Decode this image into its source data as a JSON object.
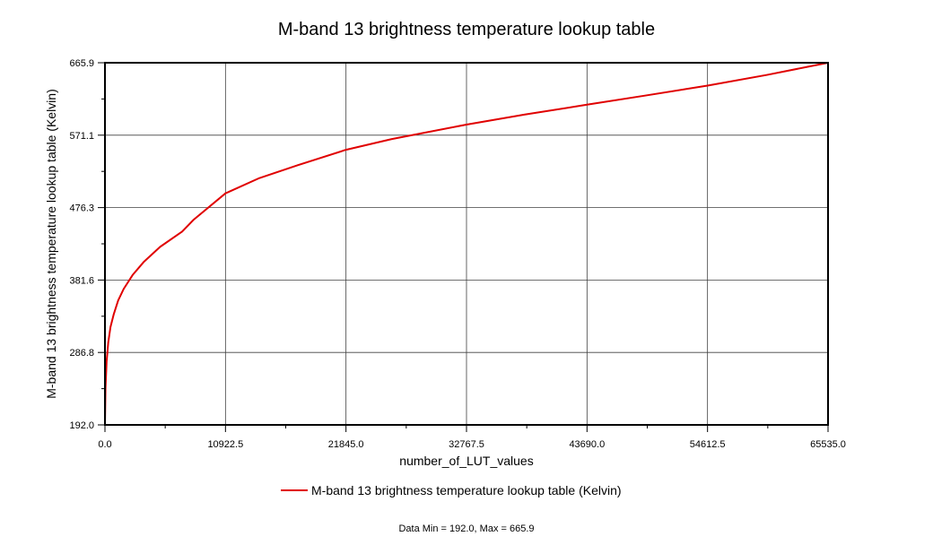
{
  "chart_data": {
    "type": "line",
    "title": "M-band 13 brightness temperature lookup table",
    "xlabel": "number_of_LUT_values",
    "ylabel": "M-band 13 brightness temperature lookup table (Kelvin)",
    "xlim": [
      0.0,
      65535.0
    ],
    "ylim": [
      192.0,
      665.9
    ],
    "x_ticks": [
      "0.0",
      "10922.5",
      "21845.0",
      "32767.5",
      "43690.0",
      "54612.5",
      "65535.0"
    ],
    "y_ticks": [
      "192.0",
      "286.8",
      "381.6",
      "476.3",
      "571.1",
      "665.9"
    ],
    "grid": true,
    "legend_position": "bottom",
    "series": [
      {
        "name": "M-band 13 brightness temperature lookup table (Kelvin)",
        "color": "#e00000",
        "x": [
          0,
          50,
          150,
          300,
          500,
          800,
          1200,
          1700,
          2500,
          3500,
          5000,
          7000,
          8000,
          10922.5,
          14000,
          17500,
          21845,
          26000,
          32767.5,
          38000,
          43690,
          49000,
          54612.5,
          60000,
          65535
        ],
        "y": [
          192.0,
          240.0,
          275.0,
          300.0,
          320.0,
          337.0,
          355.0,
          370.0,
          388.0,
          405.0,
          425.0,
          445.0,
          460.0,
          495.0,
          515.0,
          532.0,
          552.0,
          566.0,
          585.0,
          598.0,
          611.0,
          623.0,
          636.0,
          650.0,
          665.9
        ]
      }
    ],
    "footer": "Data Min = 192.0, Max = 665.9"
  }
}
